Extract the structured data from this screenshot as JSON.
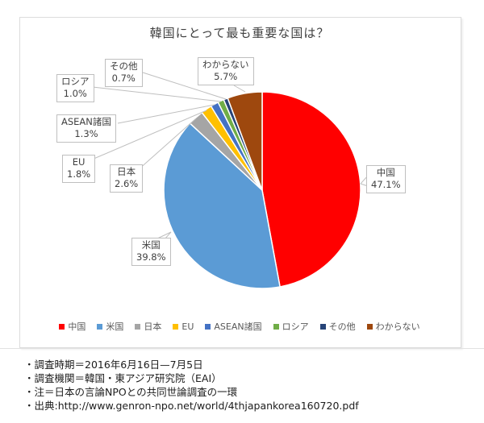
{
  "chart_data": {
    "type": "pie",
    "title": "韓国にとって最も重要な国は？",
    "categories": [
      "中国",
      "米国",
      "日本",
      "EU",
      "ASEAN諸国",
      "ロシア",
      "その他",
      "わからない"
    ],
    "values": [
      47.1,
      39.8,
      2.6,
      1.8,
      1.3,
      1.0,
      0.7,
      5.7
    ],
    "value_labels": [
      "47.1%",
      "39.8%",
      "2.6%",
      "1.8%",
      "1.3%",
      "1.0%",
      "0.7%",
      "5.7%"
    ],
    "colors": [
      "#FF0000",
      "#5B9BD5",
      "#A5A5A5",
      "#FFC000",
      "#4472C4",
      "#70AD47",
      "#264478",
      "#9E480E"
    ],
    "unit": "%",
    "start_angle_deg": 0,
    "direction": "clockwise",
    "legend_position": "bottom"
  },
  "footer": {
    "lines": [
      "・調査時期＝2016年6月16日—7月5日",
      "・調査機関＝韓国・東アジア研究院（EAI）",
      "・注＝日本の言論NPOとの共同世論調査の一環",
      "・出典:http://www.genron-npo.net/world/4thjapankorea160720.pdf"
    ]
  }
}
